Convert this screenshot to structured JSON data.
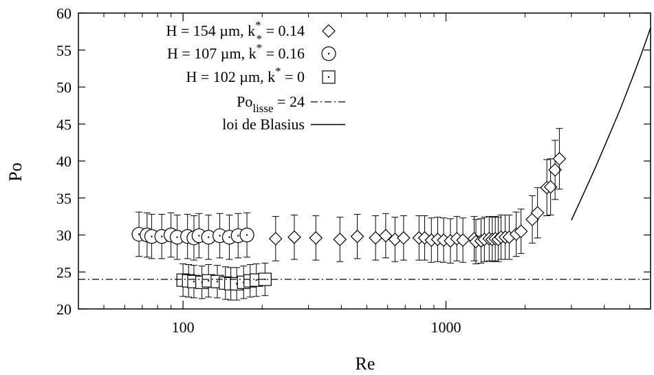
{
  "chart_data": {
    "type": "scatter",
    "xlabel": "Re",
    "ylabel": "Po",
    "xscale": "log",
    "xlim": [
      40,
      6000
    ],
    "ylim": [
      20,
      60
    ],
    "xticks": [
      {
        "value": 100,
        "label": "100"
      },
      {
        "value": 1000,
        "label": "1000"
      }
    ],
    "yticks": [
      20,
      25,
      30,
      35,
      40,
      45,
      50,
      55,
      60
    ],
    "grid": false,
    "legend_position": "top-left",
    "series": [
      {
        "legend": {
          "prefix": "H = 154 µm, k",
          "sup": "*",
          "sub": "*",
          "suffix": " = 0.14"
        },
        "marker": "diamond",
        "x": [
          225,
          265,
          320,
          395,
          460,
          540,
          590,
          640,
          690,
          790,
          830,
          880,
          930,
          980,
          1040,
          1100,
          1160,
          1280,
          1300,
          1360,
          1400,
          1460,
          1500,
          1540,
          1580,
          1620,
          1680,
          1740,
          1850,
          1930,
          2130,
          2230,
          2420,
          2500,
          2600,
          2700
        ],
        "y": [
          29.5,
          29.7,
          29.6,
          29.4,
          29.8,
          29.6,
          29.9,
          29.4,
          29.6,
          29.6,
          29.6,
          29.3,
          29.4,
          29.3,
          29.2,
          29.5,
          29.3,
          29.5,
          29.1,
          29.2,
          29.4,
          29.5,
          29.4,
          29.5,
          29.4,
          29.7,
          29.7,
          29.7,
          30.1,
          30.5,
          32.1,
          33.0,
          36.4,
          36.5,
          38.8,
          40.3
        ],
        "err": [
          3.0,
          3.0,
          3.0,
          3.0,
          3.0,
          3.0,
          3.0,
          3.0,
          3.0,
          3.0,
          3.0,
          3.0,
          3.0,
          3.0,
          3.0,
          3.0,
          3.0,
          3.0,
          3.0,
          3.0,
          3.0,
          3.0,
          3.0,
          3.0,
          3.0,
          3.0,
          3.0,
          3.0,
          3.0,
          3.0,
          3.2,
          3.4,
          3.8,
          3.8,
          4.0,
          4.1
        ]
      },
      {
        "legend": {
          "prefix": "H = 107 µm, k",
          "sup": "*",
          "sub": "",
          "suffix": " = 0.16"
        },
        "marker": "circle",
        "x": [
          68,
          73,
          76,
          83,
          90,
          95,
          104,
          110,
          115,
          125,
          138,
          150,
          162,
          175
        ],
        "y": [
          30.1,
          30.0,
          29.8,
          29.8,
          30.0,
          29.7,
          29.8,
          29.6,
          29.9,
          29.7,
          29.9,
          29.7,
          29.9,
          30.0
        ],
        "err": [
          3.0,
          3.0,
          3.0,
          3.0,
          3.0,
          3.0,
          3.0,
          3.0,
          3.0,
          3.0,
          3.0,
          3.0,
          3.0,
          3.0
        ]
      },
      {
        "legend": {
          "prefix": "H = 102 µm, k",
          "sup": "*",
          "sub": "",
          "suffix": " = 0"
        },
        "marker": "square",
        "x": [
          100,
          105,
          110,
          118,
          125,
          135,
          145,
          152,
          160,
          170,
          180,
          190,
          205
        ],
        "y": [
          23.9,
          23.8,
          23.7,
          23.6,
          23.8,
          23.7,
          23.5,
          23.4,
          23.4,
          23.6,
          23.8,
          23.9,
          24.0
        ],
        "err": [
          2.2,
          2.2,
          2.2,
          2.2,
          2.2,
          2.2,
          2.2,
          2.2,
          2.2,
          2.2,
          2.2,
          2.2,
          2.2
        ]
      },
      {
        "legend": {
          "prefix": "Po",
          "sub": "lisse",
          "suffix": " = 24"
        },
        "marker": "line-dashdot",
        "y_const": 24
      },
      {
        "legend": {
          "prefix": "loi de Blasius",
          "suffix": ""
        },
        "marker": "line-solid",
        "x": [
          3000,
          3300,
          3700,
          4100,
          4600,
          5100,
          5500,
          5800,
          6000
        ],
        "y": [
          32,
          35.2,
          39.1,
          42.8,
          47.0,
          51.1,
          54.2,
          56.5,
          58.0
        ]
      }
    ]
  }
}
